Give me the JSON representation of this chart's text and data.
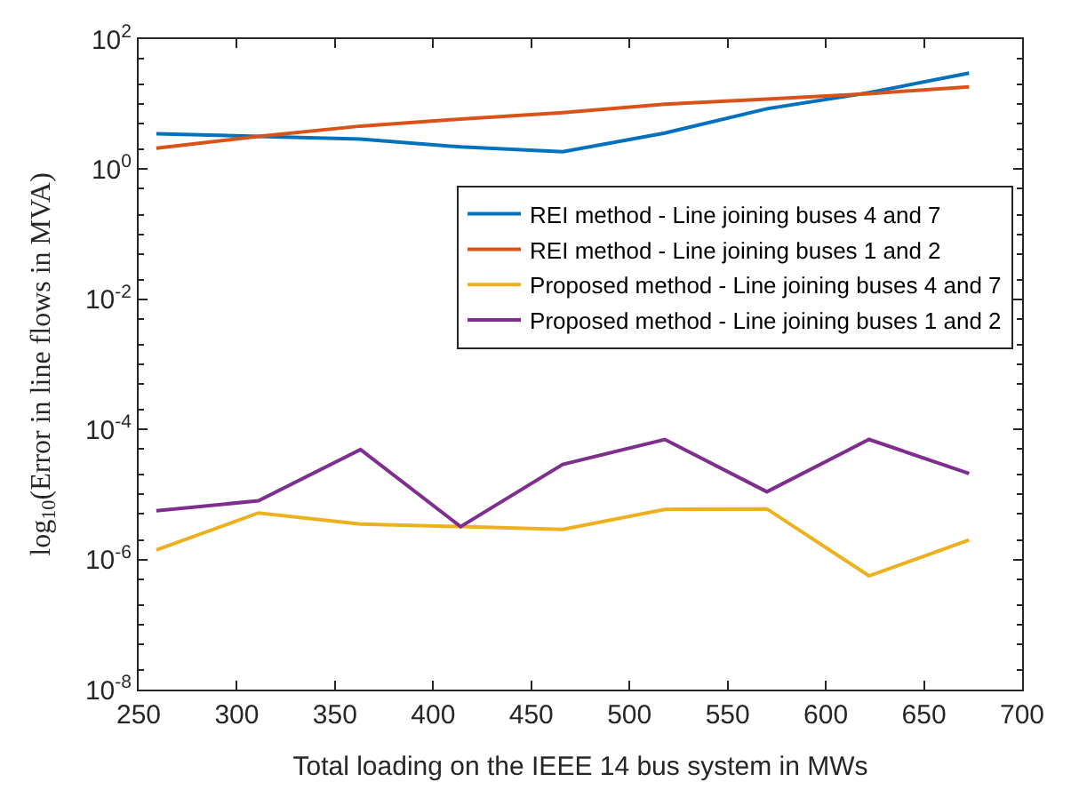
{
  "chart_data": {
    "type": "line",
    "xlabel": "Total loading on the IEEE 14 bus system in MWs",
    "ylabel": "log$_{10}$(Error in line flows in MVA)",
    "x": [
      259,
      311,
      363,
      414,
      466,
      518,
      570,
      622,
      673
    ],
    "xlim": [
      250,
      700
    ],
    "xticks": [
      250,
      300,
      350,
      400,
      450,
      500,
      550,
      600,
      650,
      700
    ],
    "log": true,
    "ylim": [
      1e-08,
      100
    ],
    "yticks": [
      {
        "value": 1e-08,
        "label": "10$^{-8}$"
      },
      {
        "value": 1e-06,
        "label": "10$^{-6}$"
      },
      {
        "value": 0.0001,
        "label": "10$^{-4}$"
      },
      {
        "value": 0.01,
        "label": "10$^{-2}$"
      },
      {
        "value": 1,
        "label": "10$^{0}$"
      },
      {
        "value": 100,
        "label": "10$^{2}$"
      }
    ],
    "legend": "top right",
    "marker": "none",
    "line_style": "solid",
    "series": [
      {
        "name": "REI method - Line joining buses 4 and 7",
        "color": "#0072bd",
        "values": [
          3.5,
          3.2,
          2.9,
          2.2,
          1.85,
          3.6,
          8.5,
          15,
          30
        ]
      },
      {
        "name": "REI method - Line joining buses 1 and 2",
        "color": "#d95319",
        "values": [
          2.1,
          3.2,
          4.6,
          5.9,
          7.4,
          10,
          12,
          14.5,
          18.5
        ]
      },
      {
        "name": "Proposed method - Line joining buses 4 and 7",
        "color": "#edb120",
        "values": [
          1.4e-06,
          5.2e-06,
          3.5e-06,
          3.2e-06,
          2.9e-06,
          5.9e-06,
          6e-06,
          5.6e-07,
          2e-06
        ]
      },
      {
        "name": "Proposed method - Line joining buses 1 and 2",
        "color": "#7e2f8e",
        "values": [
          5.6e-06,
          8e-06,
          4.9e-05,
          3.2e-06,
          2.9e-05,
          7e-05,
          1.1e-05,
          7e-05,
          2.1e-05
        ]
      }
    ]
  }
}
